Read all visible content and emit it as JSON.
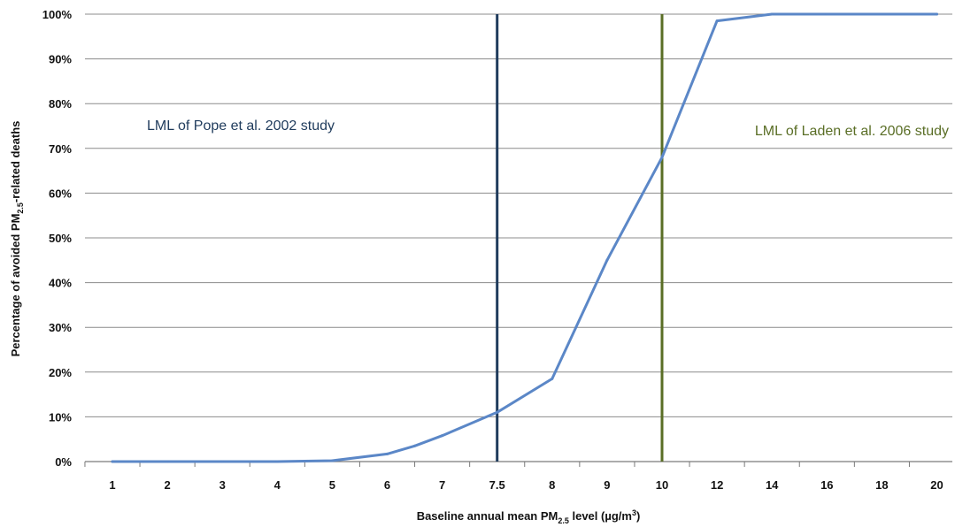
{
  "chart_data": {
    "type": "line",
    "title": "",
    "xlabel": {
      "pre": "Baseline annual mean PM",
      "sub": "2.5",
      "post": " level (µg/m",
      "sup": "3",
      "end": ")"
    },
    "ylabel": {
      "pre": "Percentage of avoided PM",
      "sub": "2.5",
      "post": "-related deaths"
    },
    "categories": [
      "1",
      "2",
      "3",
      "4",
      "5",
      "6",
      "7",
      "7.5",
      "8",
      "9",
      "10",
      "12",
      "14",
      "16",
      "18",
      "20"
    ],
    "y_tick_labels": [
      "0%",
      "10%",
      "20%",
      "30%",
      "40%",
      "50%",
      "60%",
      "70%",
      "80%",
      "90%",
      "100%"
    ],
    "ylim": [
      0,
      100
    ],
    "grid": true,
    "series": [
      {
        "color": "#5b87c7",
        "x": [
          "1",
          "2",
          "3",
          "4",
          "5",
          "6",
          "6.5",
          "7",
          "7.5",
          "8",
          "9",
          "10",
          "12",
          "14",
          "16",
          "18",
          "20"
        ],
        "values": [
          0,
          0,
          0,
          0,
          0.2,
          1.7,
          3.5,
          5.8,
          11,
          18.5,
          45,
          68,
          98.5,
          100,
          100,
          100,
          100
        ]
      }
    ],
    "reference_lines": [
      {
        "x": "7.5",
        "label": "LML of Pope et al. 2002 study",
        "color": "#1f3b5c"
      },
      {
        "x": "10",
        "label": "LML of Laden et al. 2006 study",
        "color": "#5a6e26"
      }
    ]
  }
}
